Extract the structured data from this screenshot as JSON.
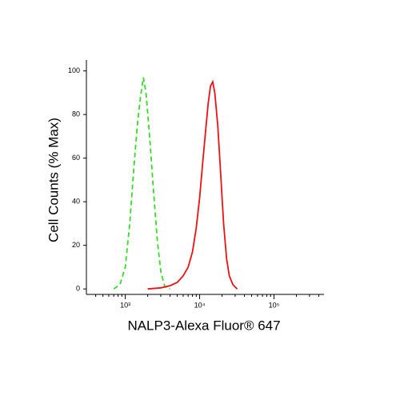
{
  "chart_data": {
    "type": "line",
    "x_label": "NALP3-Alexa Fluor® 647",
    "y_label": "Cell Counts (% Max)",
    "x_log": true,
    "grid": false,
    "xlim": [
      300,
      470000
    ],
    "ylim": [
      -2.5,
      105
    ],
    "xticks": [
      {
        "value": 1000,
        "label": "10³"
      },
      {
        "value": 10000,
        "label": "10⁴"
      },
      {
        "value": 100000,
        "label": "10⁵"
      }
    ],
    "xminor_ticks": [
      400,
      500,
      600,
      700,
      800,
      900,
      2000,
      3000,
      4000,
      5000,
      6000,
      7000,
      8000,
      9000,
      20000,
      30000,
      40000,
      50000,
      60000,
      70000,
      80000,
      90000,
      200000,
      300000,
      400000
    ],
    "yticks": [
      0,
      20,
      40,
      60,
      80,
      100
    ],
    "series": [
      {
        "color": "#33dd22",
        "dash": true,
        "x": [
          700,
          850,
          1000,
          1150,
          1300,
          1450,
          1600,
          1750,
          1900,
          2100,
          2400,
          2700,
          3000,
          3400,
          4000
        ],
        "values": [
          0,
          2,
          10,
          30,
          55,
          75,
          88,
          97,
          90,
          72,
          45,
          22,
          8,
          1,
          0
        ]
      },
      {
        "color": "#ee1111",
        "dash": false,
        "x": [
          2000,
          3000,
          4000,
          5000,
          6000,
          7000,
          8000,
          9000,
          10000,
          11000,
          12000,
          13000,
          14000,
          15000,
          16000,
          17500,
          19000,
          21000,
          23000,
          25000,
          28000,
          32000
        ],
        "values": [
          0,
          0.5,
          1.5,
          3,
          6,
          10,
          17,
          28,
          42,
          58,
          72,
          85,
          93,
          95,
          90,
          75,
          55,
          30,
          14,
          6,
          2,
          0
        ]
      }
    ]
  }
}
